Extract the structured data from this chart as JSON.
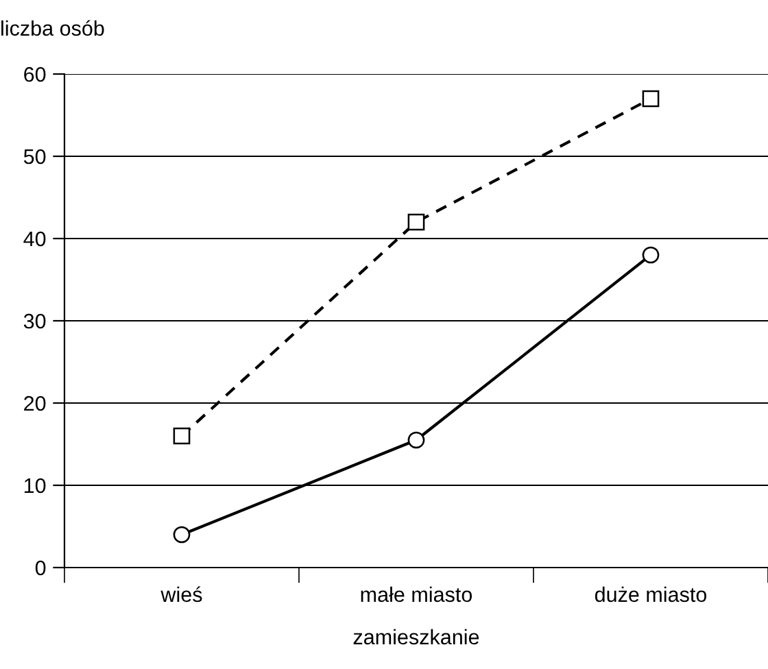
{
  "chart_data": {
    "type": "line",
    "ylabel": "liczba osób",
    "xlabel": "zamieszkanie",
    "categories": [
      "wieś",
      "małe miasto",
      "duże miasto"
    ],
    "series": [
      {
        "color": "#000000",
        "values": [
          16,
          42,
          57
        ],
        "marker": "square",
        "line_style": "dashed"
      },
      {
        "color": "#000000",
        "values": [
          4,
          15.5,
          38
        ],
        "marker": "circle",
        "line_style": "solid"
      }
    ],
    "ylim": [
      0,
      60
    ],
    "yticks": [
      0,
      10,
      20,
      30,
      40,
      50,
      60
    ],
    "grid": "y",
    "legend": false
  }
}
